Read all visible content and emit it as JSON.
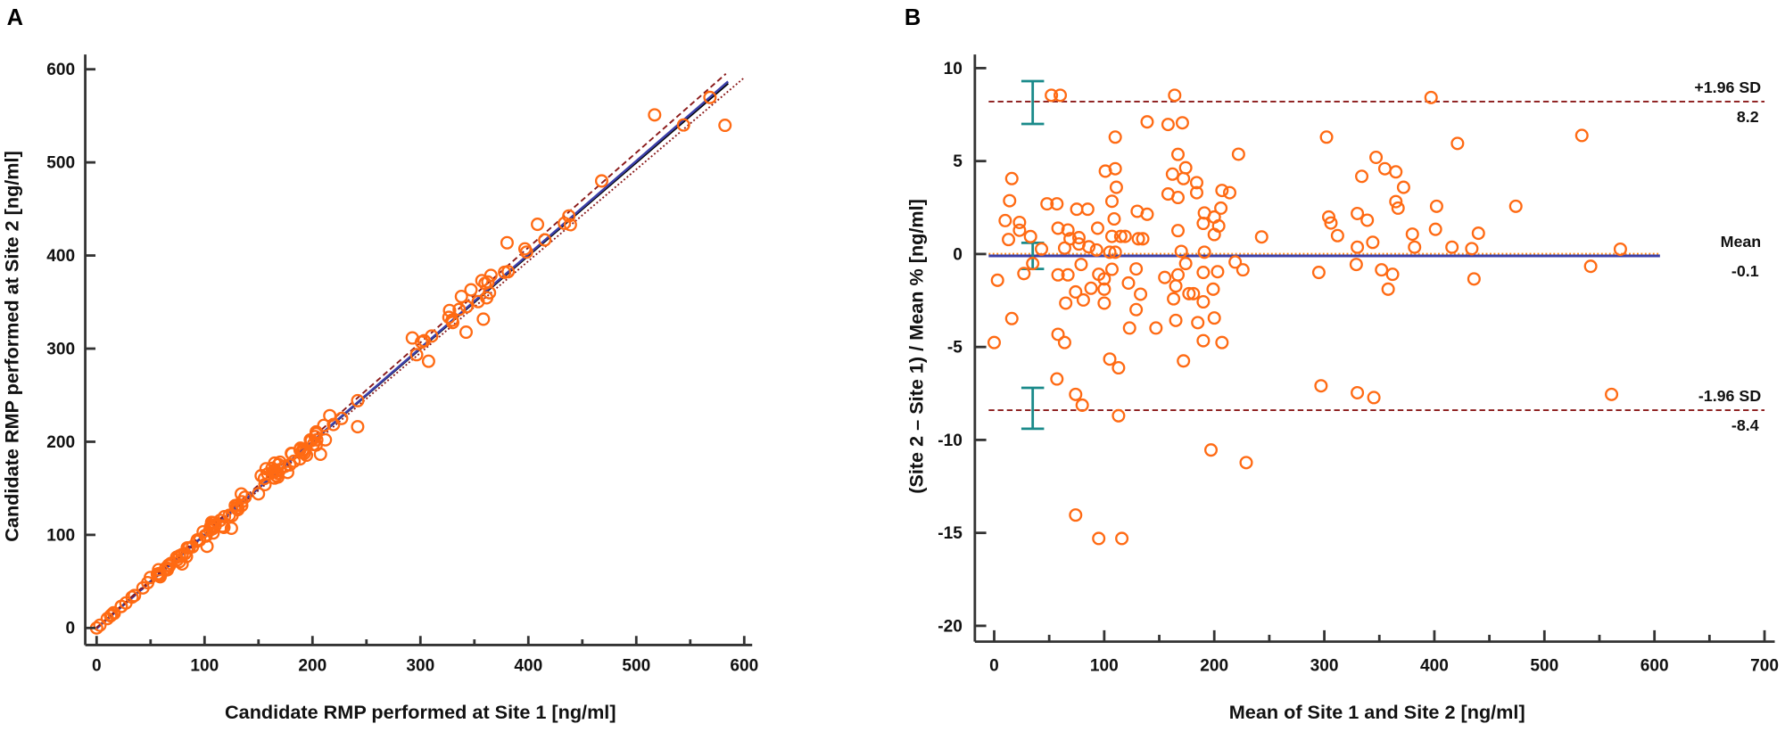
{
  "chart_data": [
    {
      "panel_label": "A",
      "type": "scatter",
      "xlabel": "Candidate RMP performed at Site 1 [ng/ml]",
      "ylabel": "Candidate RMP performed at Site 2 [ng/ml]",
      "xlim": [
        0,
        600
      ],
      "ylim": [
        0,
        600
      ],
      "xticks": [
        "0",
        "100",
        "200",
        "300",
        "400",
        "500",
        "600"
      ],
      "yticks": [
        "0",
        "100",
        "200",
        "300",
        "400",
        "500",
        "600"
      ],
      "grid": false,
      "lines": [
        {
          "style": "solid",
          "color": "#000000",
          "slope": 1.0,
          "intercept": 0,
          "x_range": [
            0,
            585
          ]
        },
        {
          "style": "solid",
          "color": "#3b3fa8",
          "slope": 1.004,
          "intercept": -0.5,
          "x_range": [
            0,
            585
          ]
        },
        {
          "style": "dashed",
          "color": "#8b1a1a",
          "slope": 1.02,
          "intercept": 0.5,
          "x_range": [
            0,
            583
          ]
        },
        {
          "style": "dotted",
          "color": "#8b1a1a",
          "slope": 0.985,
          "intercept": 0,
          "x_range": [
            0,
            600
          ]
        }
      ],
      "marker_color": "#ff6a13"
    },
    {
      "panel_label": "B",
      "type": "scatter",
      "xlabel": "Mean of Site 1 and Site 2 [ng/ml]",
      "ylabel": "(Site 2 – Site 1) / Mean % [ng/ml]",
      "xlim": [
        0,
        700
      ],
      "ylim": [
        -20,
        10
      ],
      "xticks": [
        "0",
        "100",
        "200",
        "300",
        "400",
        "500",
        "600",
        "700"
      ],
      "yticks": [
        "10",
        "5",
        "0",
        "-5",
        "-10",
        "-15",
        "-20"
      ],
      "grid": false,
      "marker_color": "#ff6a13",
      "points": [
        [
          0,
          -4.76
        ],
        [
          3,
          -1.41
        ],
        [
          10,
          1.8
        ],
        [
          14,
          2.87
        ],
        [
          16,
          4.06
        ],
        [
          13,
          0.78
        ],
        [
          16,
          -3.47
        ],
        [
          23,
          1.7
        ],
        [
          23,
          1.28
        ],
        [
          33,
          0.94
        ],
        [
          27,
          -1.05
        ],
        [
          35,
          -0.51
        ],
        [
          43,
          0.27
        ],
        [
          48,
          2.7
        ],
        [
          52,
          8.54
        ],
        [
          60,
          8.54
        ],
        [
          57,
          2.7
        ],
        [
          58,
          1.39
        ],
        [
          58,
          -1.12
        ],
        [
          67,
          -1.12
        ],
        [
          64,
          0.32
        ],
        [
          67,
          1.29
        ],
        [
          69,
          0.82
        ],
        [
          75,
          2.41
        ],
        [
          77,
          0.88
        ],
        [
          77,
          0.54
        ],
        [
          85,
          2.41
        ],
        [
          86,
          0.39
        ],
        [
          79,
          -0.56
        ],
        [
          74,
          -2.04
        ],
        [
          81,
          -2.47
        ],
        [
          88,
          -1.84
        ],
        [
          65,
          -2.64
        ],
        [
          58,
          -4.32
        ],
        [
          64,
          -4.76
        ],
        [
          57,
          -6.72
        ],
        [
          74,
          -7.55
        ],
        [
          80,
          -8.13
        ],
        [
          113,
          -8.7
        ],
        [
          93,
          0.22
        ],
        [
          94,
          1.39
        ],
        [
          95,
          -1.09
        ],
        [
          100,
          -1.34
        ],
        [
          100,
          -1.89
        ],
        [
          100,
          -2.64
        ],
        [
          101,
          4.46
        ],
        [
          110,
          4.59
        ],
        [
          110,
          6.29
        ],
        [
          107,
          2.84
        ],
        [
          109,
          1.89
        ],
        [
          111,
          3.59
        ],
        [
          105,
          0.1
        ],
        [
          110,
          0.1
        ],
        [
          107,
          0.95
        ],
        [
          115,
          0.95
        ],
        [
          119,
          0.95
        ],
        [
          107,
          -0.82
        ],
        [
          122,
          -1.56
        ],
        [
          129,
          -0.8
        ],
        [
          133,
          -2.16
        ],
        [
          129,
          -2.99
        ],
        [
          123,
          -3.98
        ],
        [
          105,
          -5.65
        ],
        [
          113,
          -6.12
        ],
        [
          130,
          2.3
        ],
        [
          139,
          2.14
        ],
        [
          139,
          7.11
        ],
        [
          131,
          0.82
        ],
        [
          135,
          0.82
        ],
        [
          147,
          -3.98
        ],
        [
          155,
          -1.26
        ],
        [
          158,
          3.23
        ],
        [
          158,
          6.97
        ],
        [
          162,
          4.3
        ],
        [
          164,
          8.54
        ],
        [
          167,
          5.36
        ],
        [
          167,
          3.04
        ],
        [
          167,
          1.26
        ],
        [
          171,
          7.06
        ],
        [
          172,
          4.06
        ],
        [
          174,
          4.64
        ],
        [
          170,
          0.14
        ],
        [
          167,
          -1.12
        ],
        [
          174,
          -0.51
        ],
        [
          165,
          -1.72
        ],
        [
          163,
          -2.41
        ],
        [
          165,
          -3.57
        ],
        [
          177,
          -2.13
        ],
        [
          181,
          -2.13
        ],
        [
          184,
          3.84
        ],
        [
          184,
          3.3
        ],
        [
          190,
          1.65
        ],
        [
          191,
          2.21
        ],
        [
          191,
          0.1
        ],
        [
          190,
          -0.99
        ],
        [
          190,
          -2.57
        ],
        [
          185,
          -3.69
        ],
        [
          190,
          -4.66
        ],
        [
          200,
          1.99
        ],
        [
          204,
          1.51
        ],
        [
          206,
          2.47
        ],
        [
          207,
          3.42
        ],
        [
          214,
          3.3
        ],
        [
          200,
          1.05
        ],
        [
          203,
          -0.95
        ],
        [
          199,
          -1.89
        ],
        [
          200,
          -3.44
        ],
        [
          207,
          -4.76
        ],
        [
          172,
          -5.75
        ],
        [
          222,
          5.37
        ],
        [
          219,
          -0.43
        ],
        [
          226,
          -0.85
        ],
        [
          243,
          0.92
        ],
        [
          295,
          -0.99
        ],
        [
          302,
          6.29
        ],
        [
          304,
          1.99
        ],
        [
          306,
          1.67
        ],
        [
          312,
          0.99
        ],
        [
          297,
          -7.09
        ],
        [
          330,
          2.18
        ],
        [
          330,
          0.37
        ],
        [
          329,
          -0.56
        ],
        [
          334,
          4.18
        ],
        [
          339,
          1.82
        ],
        [
          344,
          0.63
        ],
        [
          347,
          5.2
        ],
        [
          355,
          4.59
        ],
        [
          365,
          4.42
        ],
        [
          365,
          2.82
        ],
        [
          367,
          2.47
        ],
        [
          372,
          3.59
        ],
        [
          352,
          -0.85
        ],
        [
          362,
          -1.09
        ],
        [
          358,
          -1.89
        ],
        [
          330,
          -7.46
        ],
        [
          345,
          -7.72
        ],
        [
          380,
          1.07
        ],
        [
          382,
          0.37
        ],
        [
          397,
          8.42
        ],
        [
          401,
          1.33
        ],
        [
          402,
          2.57
        ],
        [
          416,
          0.37
        ],
        [
          421,
          5.95
        ],
        [
          434,
          0.29
        ],
        [
          436,
          -1.34
        ],
        [
          440,
          1.12
        ],
        [
          474,
          2.57
        ],
        [
          534,
          6.38
        ],
        [
          542,
          -0.66
        ],
        [
          561,
          -7.55
        ],
        [
          569,
          0.26
        ],
        [
          197,
          -10.54
        ],
        [
          229,
          -11.22
        ],
        [
          74,
          -14.04
        ],
        [
          95,
          -15.3
        ],
        [
          116,
          -15.3
        ]
      ],
      "reference_lines": [
        {
          "name": "+1.96 SD",
          "value_label": "8.2",
          "value": 8.2,
          "style": "dashed",
          "color": "#8b1a1a",
          "x_range": [
            -5,
            700
          ]
        },
        {
          "name": "Mean",
          "value_label": "-0.1",
          "value": -0.1,
          "style": "solid",
          "color": "#3b3fa8",
          "x_range": [
            -5,
            605
          ]
        },
        {
          "name": "-1.96 SD",
          "value_label": "-8.4",
          "value": -8.4,
          "style": "dashed",
          "color": "#8b1a1a",
          "x_range": [
            -5,
            700
          ]
        }
      ],
      "zero_line": {
        "value": 0,
        "style": "dotted",
        "color": "#ff8c1a",
        "x_range": [
          -5,
          605
        ]
      },
      "confidence_intervals": [
        {
          "x": 35,
          "low": 7.0,
          "high": 9.3
        },
        {
          "x": 35,
          "low": -0.8,
          "high": 0.6
        },
        {
          "x": 35,
          "low": -9.4,
          "high": -7.2
        }
      ],
      "ci_color": "#1a8a8a"
    }
  ]
}
